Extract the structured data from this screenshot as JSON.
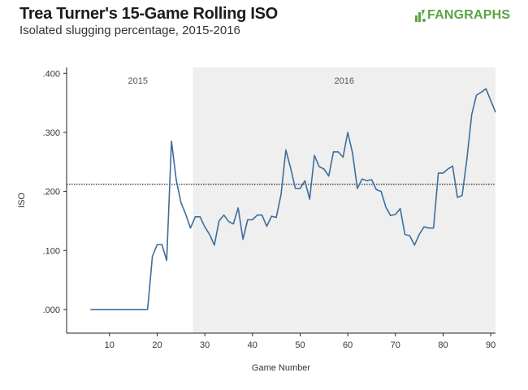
{
  "header": {
    "title": "Trea Turner's 15-Game Rolling ISO",
    "subtitle": "Isolated slugging percentage, 2015-2016"
  },
  "logo": {
    "text": "FANGRAPHS",
    "color": "#5aa541"
  },
  "chart_data": {
    "type": "line",
    "xlabel": "Game Number",
    "ylabel": "ISO",
    "xlim": [
      1,
      91
    ],
    "ylim": [
      -0.04,
      0.41
    ],
    "x_ticks": [
      10,
      20,
      30,
      40,
      50,
      60,
      70,
      80,
      90
    ],
    "y_ticks": [
      0,
      0.1,
      0.2,
      0.3,
      0.4
    ],
    "y_tick_labels": [
      ".000",
      ".100",
      ".200",
      ".300",
      ".400"
    ],
    "reference_line": {
      "y": 0.212,
      "style": "dotted"
    },
    "regions": [
      {
        "label": "2015",
        "x_start": 1,
        "x_end": 27.5,
        "shaded": false
      },
      {
        "label": "2016",
        "x_start": 27.5,
        "x_end": 91,
        "shaded": true,
        "color": "#efefef"
      }
    ],
    "series": [
      {
        "color": "#3d6e9c",
        "x": [
          6,
          7,
          8,
          9,
          10,
          11,
          12,
          13,
          14,
          15,
          16,
          17,
          18,
          19,
          20,
          21,
          22,
          23,
          24,
          25,
          26,
          27,
          28,
          29,
          30,
          31,
          32,
          33,
          34,
          35,
          36,
          37,
          38,
          39,
          40,
          41,
          42,
          43,
          44,
          45,
          46,
          47,
          48,
          49,
          50,
          51,
          52,
          53,
          54,
          55,
          56,
          57,
          58,
          59,
          60,
          61,
          62,
          63,
          64,
          65,
          66,
          67,
          68,
          69,
          70,
          71,
          72,
          73,
          74,
          75,
          76,
          77,
          78,
          79,
          80,
          81,
          82,
          83,
          84,
          85,
          86,
          87,
          88,
          89,
          90,
          91
        ],
        "y": [
          0,
          0,
          0,
          0,
          0,
          0,
          0,
          0,
          0,
          0,
          0,
          0,
          0,
          0.09,
          0.11,
          0.11,
          0.083,
          0.285,
          0.22,
          0.181,
          0.161,
          0.138,
          0.157,
          0.157,
          0.14,
          0.127,
          0.109,
          0.15,
          0.16,
          0.149,
          0.145,
          0.172,
          0.119,
          0.152,
          0.152,
          0.16,
          0.16,
          0.141,
          0.158,
          0.156,
          0.195,
          0.27,
          0.24,
          0.205,
          0.205,
          0.218,
          0.187,
          0.261,
          0.242,
          0.238,
          0.226,
          0.267,
          0.267,
          0.258,
          0.3,
          0.265,
          0.205,
          0.221,
          0.218,
          0.22,
          0.203,
          0.2,
          0.173,
          0.159,
          0.161,
          0.171,
          0.127,
          0.125,
          0.109,
          0.127,
          0.14,
          0.138,
          0.138,
          0.231,
          0.231,
          0.238,
          0.243,
          0.19,
          0.193,
          0.255,
          0.33,
          0.363,
          0.368,
          0.374,
          0.354,
          0.334
        ]
      }
    ]
  }
}
